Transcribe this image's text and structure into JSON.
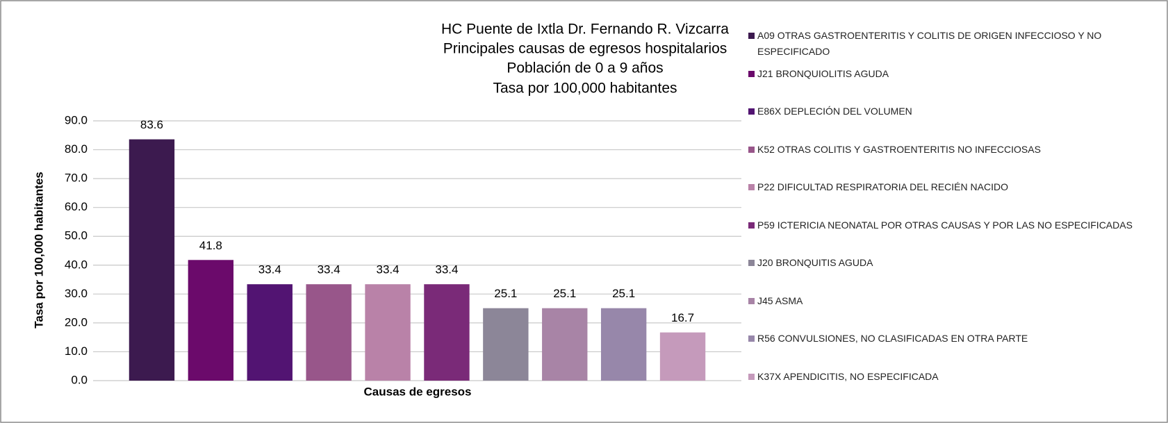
{
  "chart_data": {
    "type": "bar",
    "title": [
      "HC Puente de Ixtla Dr. Fernando R. Vizcarra",
      "Principales causas de egresos hospitalarios",
      "Población de 0 a 9 años",
      "Tasa por 100,000 habitantes"
    ],
    "x_label": "Causas de egresos",
    "y_label": "Tasa por 100,000 habitantes",
    "series": [
      {
        "name": "A09 OTRAS GASTROENTERITIS Y COLITIS DE ORIGEN INFECCIOSO Y NO ESPECIFICADO",
        "color": "#3c1a4f",
        "values": [
          83.6
        ]
      },
      {
        "name": "J21 BRONQUIOLITIS AGUDA",
        "color": "#6b0a6b",
        "values": [
          41.8
        ]
      },
      {
        "name": "E86X DEPLECIÓN DEL VOLUMEN",
        "color": "#521472",
        "values": [
          33.4
        ]
      },
      {
        "name": "K52 OTRAS COLITIS Y GASTROENTERITIS NO INFECCIOSAS",
        "color": "#98568a",
        "values": [
          33.4
        ]
      },
      {
        "name": "P22 DIFICULTAD RESPIRATORIA DEL RECIÉN NACIDO",
        "color": "#b982a8",
        "values": [
          33.4
        ]
      },
      {
        "name": "P59 ICTERICIA NEONATAL POR OTRAS CAUSAS Y POR LAS NO ESPECIFICADAS",
        "color": "#7a2a78",
        "values": [
          33.4
        ]
      },
      {
        "name": "J20 BRONQUITIS AGUDA",
        "color": "#8c8698",
        "values": [
          25.1
        ]
      },
      {
        "name": "J45 ASMA",
        "color": "#a884a6",
        "values": [
          25.1
        ]
      },
      {
        "name": "R56 CONVULSIONES, NO CLASIFICADAS EN OTRA PARTE",
        "color": "#9787aa",
        "values": [
          25.1
        ]
      },
      {
        "name": "K37X APENDICITIS, NO ESPECIFICADA",
        "color": "#c59abb",
        "values": [
          16.7
        ]
      }
    ],
    "ylim": [
      0,
      90
    ],
    "yticks": [
      {
        "value": 0,
        "label": "0.0"
      },
      {
        "value": 10,
        "label": "10.0"
      },
      {
        "value": 20,
        "label": "20.0"
      },
      {
        "value": 30,
        "label": "30.0"
      },
      {
        "value": 40,
        "label": "40.0"
      },
      {
        "value": 50,
        "label": "50.0"
      },
      {
        "value": 60,
        "label": "60.0"
      },
      {
        "value": 70,
        "label": "70.0"
      },
      {
        "value": 80,
        "label": "80.0"
      },
      {
        "value": 90,
        "label": "90.0"
      }
    ],
    "grid": true,
    "legend": "right"
  }
}
